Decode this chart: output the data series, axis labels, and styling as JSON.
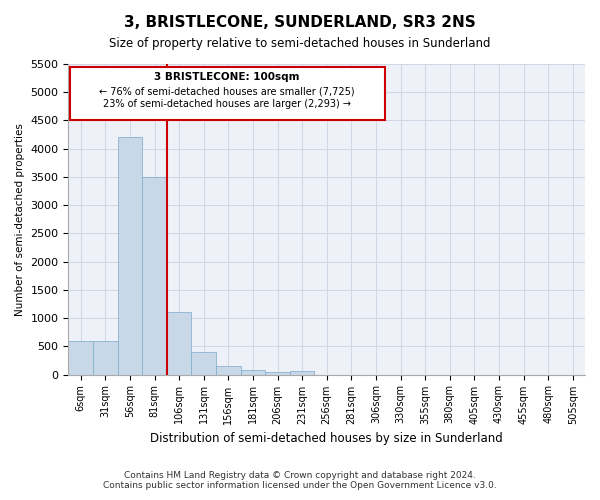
{
  "title": "3, BRISTLECONE, SUNDERLAND, SR3 2NS",
  "subtitle": "Size of property relative to semi-detached houses in Sunderland",
  "xlabel": "Distribution of semi-detached houses by size in Sunderland",
  "ylabel": "Number of semi-detached properties",
  "footer_line1": "Contains HM Land Registry data © Crown copyright and database right 2024.",
  "footer_line2": "Contains public sector information licensed under the Open Government Licence v3.0.",
  "annotation_title": "3 BRISTLECONE: 100sqm",
  "annotation_line1": "← 76% of semi-detached houses are smaller (7,725)",
  "annotation_line2": "23% of semi-detached houses are larger (2,293) →",
  "property_size_sqm": 100,
  "bar_color": "#c8d8e8",
  "bar_edge_color": "#7aaac8",
  "vline_color": "#cc0000",
  "annotation_box_color": "#ffffff",
  "annotation_box_edge": "#cc0000",
  "grid_color": "#d0d8e8",
  "bin_labels": [
    "6sqm",
    "31sqm",
    "56sqm",
    "81sqm",
    "106sqm",
    "131sqm",
    "156sqm",
    "181sqm",
    "206sqm",
    "231sqm",
    "256sqm",
    "281sqm",
    "306sqm",
    "330sqm",
    "355sqm",
    "380sqm",
    "405sqm",
    "430sqm",
    "455sqm",
    "480sqm",
    "505sqm"
  ],
  "counts": [
    600,
    600,
    4200,
    3500,
    1100,
    400,
    150,
    80,
    50,
    60,
    0,
    0,
    0,
    0,
    0,
    0,
    0,
    0,
    0,
    0,
    0
  ],
  "ylim": [
    0,
    5500
  ],
  "yticks": [
    0,
    500,
    1000,
    1500,
    2000,
    2500,
    3000,
    3500,
    4000,
    4500,
    5000,
    5500
  ]
}
